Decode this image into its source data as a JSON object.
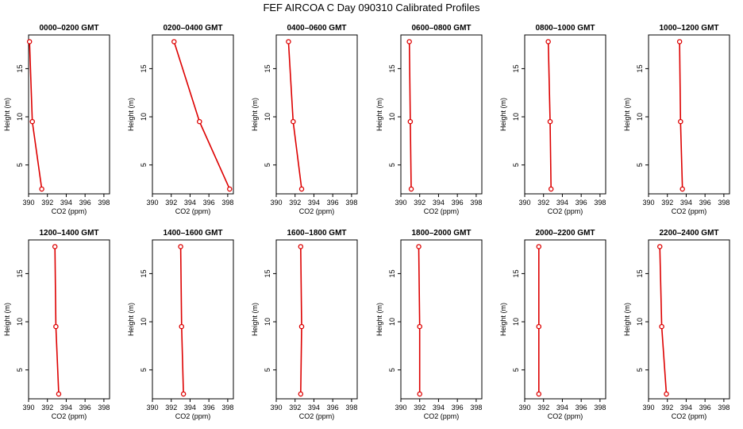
{
  "page_title": "FEF AIRCOA C  Day 090310  Calibrated Profiles",
  "colors": {
    "series": "#dd0000",
    "axes": "#000000",
    "background": "#ffffff"
  },
  "chart_data": [
    {
      "type": "line",
      "title": "0000–0200 GMT",
      "xlabel": "CO2 (ppm)",
      "ylabel": "Height (m)",
      "xlim": [
        390,
        398.6
      ],
      "ylim": [
        2,
        18.5
      ],
      "xticks": [
        "390",
        "392",
        "394",
        "396",
        "398"
      ],
      "yticks": [
        "5",
        "10",
        "15"
      ],
      "x": [
        390.1,
        390.4,
        391.4
      ],
      "y": [
        17.8,
        9.5,
        2.5
      ]
    },
    {
      "type": "line",
      "title": "0200–0400 GMT",
      "xlabel": "CO2 (ppm)",
      "ylabel": "Height (m)",
      "xlim": [
        390,
        398.6
      ],
      "ylim": [
        2,
        18.5
      ],
      "xticks": [
        "390",
        "392",
        "394",
        "396",
        "398"
      ],
      "yticks": [
        "5",
        "10",
        "15"
      ],
      "x": [
        392.3,
        395.0,
        398.2
      ],
      "y": [
        17.8,
        9.5,
        2.5
      ]
    },
    {
      "type": "line",
      "title": "0400–0600 GMT",
      "xlabel": "CO2 (ppm)",
      "ylabel": "Height (m)",
      "xlim": [
        390,
        398.6
      ],
      "ylim": [
        2,
        18.5
      ],
      "xticks": [
        "390",
        "392",
        "394",
        "396",
        "398"
      ],
      "yticks": [
        "5",
        "10",
        "15"
      ],
      "x": [
        391.3,
        391.8,
        392.7
      ],
      "y": [
        17.8,
        9.5,
        2.5
      ]
    },
    {
      "type": "line",
      "title": "0600–0800 GMT",
      "xlabel": "CO2 (ppm)",
      "ylabel": "Height (m)",
      "xlim": [
        390,
        398.6
      ],
      "ylim": [
        2,
        18.5
      ],
      "xticks": [
        "390",
        "392",
        "394",
        "396",
        "398"
      ],
      "yticks": [
        "5",
        "10",
        "15"
      ],
      "x": [
        390.9,
        391.0,
        391.1
      ],
      "y": [
        17.8,
        9.5,
        2.5
      ]
    },
    {
      "type": "line",
      "title": "0800–1000 GMT",
      "xlabel": "CO2 (ppm)",
      "ylabel": "Height (m)",
      "xlim": [
        390,
        398.6
      ],
      "ylim": [
        2,
        18.5
      ],
      "xticks": [
        "390",
        "392",
        "394",
        "396",
        "398"
      ],
      "yticks": [
        "5",
        "10",
        "15"
      ],
      "x": [
        392.5,
        392.7,
        392.8
      ],
      "y": [
        17.8,
        9.5,
        2.5
      ]
    },
    {
      "type": "line",
      "title": "1000–1200 GMT",
      "xlabel": "CO2 (ppm)",
      "ylabel": "Height (m)",
      "xlim": [
        390,
        398.6
      ],
      "ylim": [
        2,
        18.5
      ],
      "xticks": [
        "390",
        "392",
        "394",
        "396",
        "398"
      ],
      "yticks": [
        "5",
        "10",
        "15"
      ],
      "x": [
        393.3,
        393.4,
        393.6
      ],
      "y": [
        17.8,
        9.5,
        2.5
      ]
    },
    {
      "type": "line",
      "title": "1200–1400 GMT",
      "xlabel": "CO2 (ppm)",
      "ylabel": "Height (m)",
      "xlim": [
        390,
        398.6
      ],
      "ylim": [
        2,
        18.5
      ],
      "xticks": [
        "390",
        "392",
        "394",
        "396",
        "398"
      ],
      "yticks": [
        "5",
        "10",
        "15"
      ],
      "x": [
        392.8,
        392.9,
        393.2
      ],
      "y": [
        17.8,
        9.5,
        2.5
      ]
    },
    {
      "type": "line",
      "title": "1400–1600 GMT",
      "xlabel": "CO2 (ppm)",
      "ylabel": "Height (m)",
      "xlim": [
        390,
        398.6
      ],
      "ylim": [
        2,
        18.5
      ],
      "xticks": [
        "390",
        "392",
        "394",
        "396",
        "398"
      ],
      "yticks": [
        "5",
        "10",
        "15"
      ],
      "x": [
        393.0,
        393.1,
        393.3
      ],
      "y": [
        17.8,
        9.5,
        2.5
      ]
    },
    {
      "type": "line",
      "title": "1600–1800 GMT",
      "xlabel": "CO2 (ppm)",
      "ylabel": "Height (m)",
      "xlim": [
        390,
        398.6
      ],
      "ylim": [
        2,
        18.5
      ],
      "xticks": [
        "390",
        "392",
        "394",
        "396",
        "398"
      ],
      "yticks": [
        "5",
        "10",
        "15"
      ],
      "x": [
        392.6,
        392.7,
        392.6
      ],
      "y": [
        17.8,
        9.5,
        2.5
      ]
    },
    {
      "type": "line",
      "title": "1800–2000 GMT",
      "xlabel": "CO2 (ppm)",
      "ylabel": "Height (m)",
      "xlim": [
        390,
        398.6
      ],
      "ylim": [
        2,
        18.5
      ],
      "xticks": [
        "390",
        "392",
        "394",
        "396",
        "398"
      ],
      "yticks": [
        "5",
        "10",
        "15"
      ],
      "x": [
        391.9,
        392.0,
        392.0
      ],
      "y": [
        17.8,
        9.5,
        2.5
      ]
    },
    {
      "type": "line",
      "title": "2000–2200 GMT",
      "xlabel": "CO2 (ppm)",
      "ylabel": "Height (m)",
      "xlim": [
        390,
        398.6
      ],
      "ylim": [
        2,
        18.5
      ],
      "xticks": [
        "390",
        "392",
        "394",
        "396",
        "398"
      ],
      "yticks": [
        "5",
        "10",
        "15"
      ],
      "x": [
        391.5,
        391.5,
        391.5
      ],
      "y": [
        17.8,
        9.5,
        2.5
      ]
    },
    {
      "type": "line",
      "title": "2200–2400 GMT",
      "xlabel": "CO2 (ppm)",
      "ylabel": "Height (m)",
      "xlim": [
        390,
        398.6
      ],
      "ylim": [
        2,
        18.5
      ],
      "xticks": [
        "390",
        "392",
        "394",
        "396",
        "398"
      ],
      "yticks": [
        "5",
        "10",
        "15"
      ],
      "x": [
        391.2,
        391.4,
        391.9
      ],
      "y": [
        17.8,
        9.5,
        2.5
      ]
    }
  ]
}
